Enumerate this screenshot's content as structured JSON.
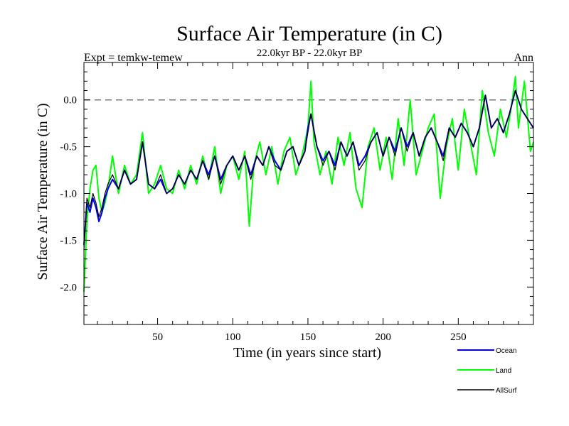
{
  "chart_data": {
    "type": "line",
    "title": "Surface Air Temperature (in C)",
    "subtitle": "22.0kyr BP - 22.0kyr BP",
    "top_left_label": "Expt = temkw-temew",
    "top_right_label": "Ann",
    "xlabel": "Time (in years since start)",
    "ylabel": "Surface Air Temperature (in C)",
    "xlim": [
      1,
      300
    ],
    "ylim": [
      -2.4,
      0.4
    ],
    "xticks": [
      50,
      100,
      150,
      200,
      250
    ],
    "xtick_labels": [
      "50",
      "100",
      "150",
      "200",
      "250"
    ],
    "yticks": [
      -2.0,
      -1.5,
      -1.0,
      -0.5,
      0.0
    ],
    "ytick_labels": [
      "-2.0",
      "-1.5",
      "-1.0",
      "-0.5",
      "0.0"
    ],
    "reference_line": 0.0,
    "legend_position": "bottom-right",
    "series": [
      {
        "name": "Land",
        "color": "#00ff00",
        "x": [
          1,
          3,
          5,
          7,
          9,
          11,
          13,
          15,
          17,
          20,
          24,
          28,
          32,
          36,
          40,
          44,
          48,
          52,
          56,
          60,
          64,
          68,
          72,
          76,
          80,
          84,
          88,
          92,
          96,
          100,
          104,
          108,
          111,
          114,
          118,
          122,
          126,
          130,
          134,
          138,
          142,
          146,
          150,
          152,
          154,
          158,
          162,
          166,
          170,
          174,
          178,
          182,
          186,
          190,
          194,
          198,
          202,
          206,
          210,
          214,
          218,
          222,
          226,
          230,
          234,
          238,
          242,
          246,
          250,
          254,
          258,
          262,
          266,
          270,
          274,
          278,
          282,
          286,
          288,
          290,
          294,
          298,
          300
        ],
        "values": [
          -2.05,
          -1.3,
          -0.95,
          -0.75,
          -0.7,
          -1.05,
          -1.2,
          -1.1,
          -0.95,
          -0.6,
          -1.0,
          -0.7,
          -0.9,
          -0.8,
          -0.35,
          -1.0,
          -0.9,
          -0.7,
          -0.95,
          -1.0,
          -0.75,
          -0.95,
          -0.7,
          -0.9,
          -0.6,
          -0.85,
          -0.5,
          -1.0,
          -0.7,
          -0.6,
          -0.85,
          -0.55,
          -1.35,
          -0.7,
          -0.45,
          -0.8,
          -0.5,
          -0.9,
          -0.55,
          -0.4,
          -0.8,
          -0.6,
          -0.3,
          0.2,
          -0.45,
          -0.8,
          -0.55,
          -0.9,
          -0.4,
          -0.7,
          -0.35,
          -0.95,
          -1.15,
          -0.5,
          -0.3,
          -0.75,
          -0.4,
          -0.85,
          -0.2,
          -0.7,
          0.0,
          -0.8,
          -0.55,
          -0.3,
          -0.15,
          -1.05,
          -0.5,
          -0.2,
          -0.75,
          -0.1,
          -0.45,
          -0.8,
          0.1,
          -0.35,
          -0.6,
          -0.1,
          -0.4,
          0.0,
          0.25,
          -0.3,
          0.2,
          -0.55,
          -0.45
        ]
      },
      {
        "name": "Ocean",
        "color": "#0000ee",
        "x": [
          1,
          3,
          5,
          7,
          9,
          11,
          13,
          15,
          17,
          20,
          24,
          28,
          32,
          36,
          40,
          44,
          48,
          52,
          56,
          60,
          64,
          68,
          72,
          76,
          80,
          84,
          88,
          92,
          96,
          100,
          104,
          108,
          112,
          116,
          120,
          124,
          128,
          132,
          136,
          140,
          144,
          148,
          150,
          152,
          156,
          160,
          164,
          168,
          172,
          176,
          180,
          184,
          188,
          192,
          196,
          200,
          204,
          208,
          212,
          216,
          220,
          224,
          228,
          232,
          236,
          240,
          244,
          248,
          252,
          256,
          260,
          264,
          268,
          272,
          276,
          280,
          284,
          288,
          292,
          296,
          300
        ],
        "values": [
          -1.55,
          -1.1,
          -1.2,
          -1.05,
          -1.15,
          -1.3,
          -1.2,
          -1.05,
          -0.95,
          -0.85,
          -0.95,
          -0.75,
          -0.9,
          -0.85,
          -0.45,
          -0.9,
          -0.95,
          -0.85,
          -1.0,
          -0.95,
          -0.8,
          -0.9,
          -0.75,
          -0.85,
          -0.65,
          -0.8,
          -0.6,
          -0.85,
          -0.7,
          -0.6,
          -0.75,
          -0.6,
          -0.8,
          -0.6,
          -0.7,
          -0.5,
          -0.65,
          -0.75,
          -0.55,
          -0.5,
          -0.7,
          -0.55,
          -0.3,
          -0.15,
          -0.5,
          -0.65,
          -0.55,
          -0.7,
          -0.45,
          -0.6,
          -0.45,
          -0.7,
          -0.6,
          -0.45,
          -0.35,
          -0.6,
          -0.4,
          -0.55,
          -0.3,
          -0.5,
          -0.35,
          -0.6,
          -0.4,
          -0.3,
          -0.45,
          -0.6,
          -0.3,
          -0.4,
          -0.25,
          -0.35,
          -0.5,
          -0.3,
          0.05,
          -0.3,
          -0.2,
          -0.35,
          -0.15,
          0.1,
          -0.1,
          -0.2,
          -0.3
        ]
      },
      {
        "name": "AllSurf",
        "color": "#000000",
        "x": [
          1,
          3,
          5,
          7,
          9,
          11,
          13,
          15,
          17,
          20,
          24,
          28,
          32,
          36,
          40,
          44,
          48,
          52,
          56,
          60,
          64,
          68,
          72,
          76,
          80,
          84,
          88,
          92,
          96,
          100,
          104,
          108,
          112,
          116,
          120,
          124,
          128,
          132,
          136,
          140,
          144,
          148,
          150,
          152,
          156,
          160,
          164,
          168,
          172,
          176,
          180,
          184,
          188,
          192,
          196,
          200,
          204,
          208,
          212,
          216,
          220,
          224,
          228,
          232,
          236,
          240,
          244,
          248,
          252,
          256,
          260,
          264,
          268,
          272,
          276,
          280,
          284,
          288,
          292,
          296,
          300
        ],
        "values": [
          -1.6,
          -1.05,
          -1.15,
          -1.0,
          -1.1,
          -1.25,
          -1.15,
          -1.0,
          -0.9,
          -0.8,
          -0.95,
          -0.75,
          -0.9,
          -0.85,
          -0.45,
          -0.9,
          -0.95,
          -0.8,
          -1.0,
          -0.95,
          -0.8,
          -0.9,
          -0.75,
          -0.85,
          -0.65,
          -0.85,
          -0.6,
          -0.9,
          -0.7,
          -0.6,
          -0.75,
          -0.6,
          -0.85,
          -0.6,
          -0.7,
          -0.5,
          -0.7,
          -0.75,
          -0.55,
          -0.5,
          -0.7,
          -0.55,
          -0.35,
          -0.15,
          -0.5,
          -0.7,
          -0.55,
          -0.75,
          -0.45,
          -0.6,
          -0.45,
          -0.75,
          -0.65,
          -0.45,
          -0.35,
          -0.6,
          -0.4,
          -0.6,
          -0.3,
          -0.55,
          -0.35,
          -0.6,
          -0.4,
          -0.3,
          -0.45,
          -0.65,
          -0.3,
          -0.4,
          -0.25,
          -0.35,
          -0.5,
          -0.3,
          0.05,
          -0.3,
          -0.2,
          -0.35,
          -0.15,
          0.1,
          -0.1,
          -0.2,
          -0.3
        ]
      }
    ]
  }
}
